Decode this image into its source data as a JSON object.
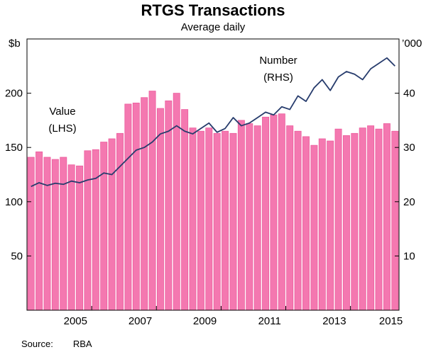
{
  "page": {
    "title": "RTGS Transactions",
    "subtitle": "Average daily",
    "source_label": "Source:",
    "source_value": "RBA"
  },
  "chart_data": {
    "type": "bar+line",
    "title": "RTGS Transactions",
    "subtitle": "Average daily",
    "left_axis": {
      "unit": "$b",
      "min": 0,
      "max": 250,
      "ticks": [
        50,
        100,
        150,
        200
      ]
    },
    "right_axis": {
      "unit": "’000",
      "min": 0,
      "max": 50,
      "ticks": [
        10,
        20,
        30,
        40
      ]
    },
    "x_axis": {
      "start": 2004,
      "end": 2015.5,
      "frequency": "quarterly",
      "first_period": "2004Q1",
      "year_labels": [
        "2005",
        "2007",
        "2009",
        "2011",
        "2013",
        "2015"
      ],
      "boundary_ticks": [
        2006,
        2008,
        2010,
        2012,
        2014
      ]
    },
    "series": [
      {
        "name": "Value (LHS)",
        "type": "bar",
        "axis": "left",
        "color": "#f478b0",
        "stroke": "#ec5a9c",
        "values": [
          141,
          146,
          141,
          139,
          141,
          134,
          133,
          147,
          148,
          155,
          158,
          163,
          190,
          191,
          196,
          202,
          186,
          193,
          200,
          185,
          168,
          165,
          168,
          163,
          165,
          163,
          175,
          172,
          170,
          178,
          180,
          181,
          170,
          165,
          160,
          152,
          158,
          156,
          167,
          161,
          163,
          168,
          170,
          167,
          172,
          165
        ]
      },
      {
        "name": "Number (RHS)",
        "type": "line",
        "axis": "right",
        "color": "#273c6d",
        "values": [
          22.8,
          23.5,
          23.0,
          23.4,
          23.2,
          23.8,
          23.5,
          24.0,
          24.3,
          25.3,
          25.0,
          26.5,
          28.0,
          29.5,
          30.0,
          31.0,
          32.5,
          33.0,
          34.0,
          33.0,
          32.5,
          33.5,
          34.5,
          32.8,
          33.5,
          35.5,
          34.0,
          34.5,
          35.5,
          36.5,
          36.0,
          37.5,
          37.0,
          39.5,
          38.5,
          41.0,
          42.5,
          40.5,
          43.0,
          44.0,
          43.5,
          42.5,
          44.5,
          45.5,
          46.5,
          45.0
        ]
      }
    ],
    "annotations": [
      {
        "lines": [
          "Value",
          "(LHS)"
        ],
        "color": "#f15fa3",
        "x": 88,
        "y": 162
      },
      {
        "lines": [
          "Number",
          "(RHS)"
        ],
        "color": "#273c6d",
        "x": 392,
        "y": 90
      }
    ],
    "grid": false,
    "legend_position": "inline-annotations"
  }
}
